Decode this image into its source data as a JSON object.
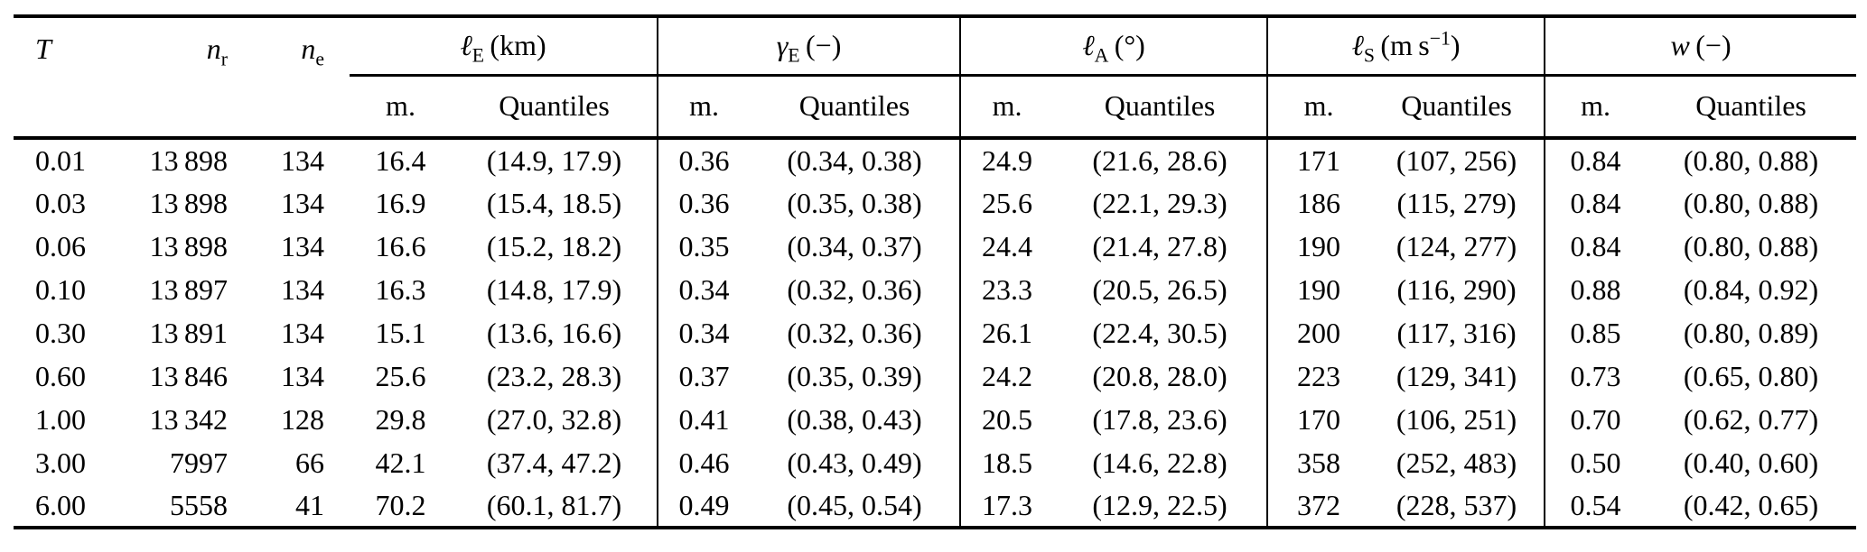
{
  "table": {
    "columns": {
      "T": "T",
      "nr": {
        "base": "n",
        "sub": "r"
      },
      "ne": {
        "base": "n",
        "sub": "e"
      }
    },
    "groups": [
      {
        "symbol": "ℓ",
        "sub": "E",
        "unit_pre": " (km)",
        "unit_sup": "",
        "unit_post": "",
        "m": "m.",
        "q": "Quantiles"
      },
      {
        "symbol": "γ",
        "sub": "E",
        "unit_pre": " (−)",
        "unit_sup": "",
        "unit_post": "",
        "m": "m.",
        "q": "Quantiles"
      },
      {
        "symbol": "ℓ",
        "sub": "A",
        "unit_pre": " (°)",
        "unit_sup": "",
        "unit_post": "",
        "m": "m.",
        "q": "Quantiles"
      },
      {
        "symbol": "ℓ",
        "sub": "S",
        "unit_pre": " (m s",
        "unit_sup": "−1",
        "unit_post": ")",
        "m": "m.",
        "q": "Quantiles"
      },
      {
        "symbol": "w",
        "sub": "",
        "unit_pre": " (−)",
        "unit_sup": "",
        "unit_post": "",
        "m": "m.",
        "q": "Quantiles"
      }
    ],
    "rows": [
      {
        "T": "0.01",
        "nr": "13 898",
        "ne": "134",
        "lE_m": "16.4",
        "lE_q": "(14.9, 17.9)",
        "gE_m": "0.36",
        "gE_q": "(0.34, 0.38)",
        "lA_m": "24.9",
        "lA_q": "(21.6, 28.6)",
        "lS_m": "171",
        "lS_q": "(107, 256)",
        "w_m": "0.84",
        "w_q": "(0.80, 0.88)"
      },
      {
        "T": "0.03",
        "nr": "13 898",
        "ne": "134",
        "lE_m": "16.9",
        "lE_q": "(15.4, 18.5)",
        "gE_m": "0.36",
        "gE_q": "(0.35, 0.38)",
        "lA_m": "25.6",
        "lA_q": "(22.1, 29.3)",
        "lS_m": "186",
        "lS_q": "(115, 279)",
        "w_m": "0.84",
        "w_q": "(0.80, 0.88)"
      },
      {
        "T": "0.06",
        "nr": "13 898",
        "ne": "134",
        "lE_m": "16.6",
        "lE_q": "(15.2, 18.2)",
        "gE_m": "0.35",
        "gE_q": "(0.34, 0.37)",
        "lA_m": "24.4",
        "lA_q": "(21.4, 27.8)",
        "lS_m": "190",
        "lS_q": "(124, 277)",
        "w_m": "0.84",
        "w_q": "(0.80, 0.88)"
      },
      {
        "T": "0.10",
        "nr": "13 897",
        "ne": "134",
        "lE_m": "16.3",
        "lE_q": "(14.8, 17.9)",
        "gE_m": "0.34",
        "gE_q": "(0.32, 0.36)",
        "lA_m": "23.3",
        "lA_q": "(20.5, 26.5)",
        "lS_m": "190",
        "lS_q": "(116, 290)",
        "w_m": "0.88",
        "w_q": "(0.84, 0.92)"
      },
      {
        "T": "0.30",
        "nr": "13 891",
        "ne": "134",
        "lE_m": "15.1",
        "lE_q": "(13.6, 16.6)",
        "gE_m": "0.34",
        "gE_q": "(0.32, 0.36)",
        "lA_m": "26.1",
        "lA_q": "(22.4, 30.5)",
        "lS_m": "200",
        "lS_q": "(117, 316)",
        "w_m": "0.85",
        "w_q": "(0.80, 0.89)"
      },
      {
        "T": "0.60",
        "nr": "13 846",
        "ne": "134",
        "lE_m": "25.6",
        "lE_q": "(23.2, 28.3)",
        "gE_m": "0.37",
        "gE_q": "(0.35, 0.39)",
        "lA_m": "24.2",
        "lA_q": "(20.8, 28.0)",
        "lS_m": "223",
        "lS_q": "(129, 341)",
        "w_m": "0.73",
        "w_q": "(0.65, 0.80)"
      },
      {
        "T": "1.00",
        "nr": "13 342",
        "ne": "128",
        "lE_m": "29.8",
        "lE_q": "(27.0, 32.8)",
        "gE_m": "0.41",
        "gE_q": "(0.38, 0.43)",
        "lA_m": "20.5",
        "lA_q": "(17.8, 23.6)",
        "lS_m": "170",
        "lS_q": "(106, 251)",
        "w_m": "0.70",
        "w_q": "(0.62, 0.77)"
      },
      {
        "T": "3.00",
        "nr": "7997",
        "ne": "66",
        "lE_m": "42.1",
        "lE_q": "(37.4, 47.2)",
        "gE_m": "0.46",
        "gE_q": "(0.43, 0.49)",
        "lA_m": "18.5",
        "lA_q": "(14.6, 22.8)",
        "lS_m": "358",
        "lS_q": "(252, 483)",
        "w_m": "0.50",
        "w_q": "(0.40, 0.60)"
      },
      {
        "T": "6.00",
        "nr": "5558",
        "ne": "41",
        "lE_m": "70.2",
        "lE_q": "(60.1, 81.7)",
        "gE_m": "0.49",
        "gE_q": "(0.45, 0.54)",
        "lA_m": "17.3",
        "lA_q": "(12.9, 22.5)",
        "lS_m": "372",
        "lS_q": "(228, 537)",
        "w_m": "0.54",
        "w_q": "(0.42, 0.65)"
      }
    ]
  }
}
